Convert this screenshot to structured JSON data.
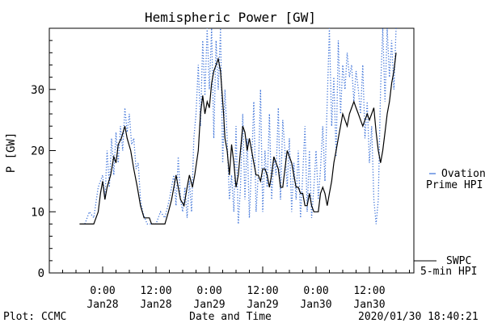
{
  "chart_data": {
    "type": "line",
    "title": "Hemispheric Power [GW]",
    "xlabel": "Date and Time",
    "ylabel": "P [GW]",
    "ylim": [
      0,
      40
    ],
    "xlim_hours": [
      -12,
      70
    ],
    "yticks": [
      0,
      10,
      20,
      30
    ],
    "xticks": [
      {
        "hour": 0,
        "time": "0:00",
        "date": "Jan28"
      },
      {
        "hour": 12,
        "time": "12:00",
        "date": "Jan28"
      },
      {
        "hour": 24,
        "time": "0:00",
        "date": "Jan29"
      },
      {
        "hour": 36,
        "time": "12:00",
        "date": "Jan29"
      },
      {
        "hour": 48,
        "time": "0:00",
        "date": "Jan30"
      },
      {
        "hour": 60,
        "time": "12:00",
        "date": "Jan30"
      }
    ],
    "grid": false,
    "legend_placement": "right",
    "series": [
      {
        "name": "SWPC 5-min HPI",
        "legend": [
          "SWPC",
          "5-min HPI"
        ],
        "color": "#000000",
        "style": "solid",
        "points": [
          [
            -5.2,
            8
          ],
          [
            -2.5,
            8
          ],
          [
            -2,
            8
          ],
          [
            -1,
            10
          ],
          [
            -0.5,
            13
          ],
          [
            0,
            15
          ],
          [
            0.5,
            12
          ],
          [
            1,
            14
          ],
          [
            1.8,
            16
          ],
          [
            2.5,
            19
          ],
          [
            3,
            18
          ],
          [
            3.5,
            21
          ],
          [
            4.2,
            22
          ],
          [
            5,
            24
          ],
          [
            5.5,
            22
          ],
          [
            6.3,
            20
          ],
          [
            7,
            17
          ],
          [
            7.8,
            14
          ],
          [
            8.5,
            11
          ],
          [
            9.3,
            9
          ],
          [
            10.5,
            9
          ],
          [
            11,
            8
          ],
          [
            14,
            8
          ],
          [
            14.8,
            10
          ],
          [
            15.5,
            12
          ],
          [
            16.5,
            16
          ],
          [
            17,
            14
          ],
          [
            17.5,
            12
          ],
          [
            18.3,
            11
          ],
          [
            19,
            14
          ],
          [
            19.5,
            16
          ],
          [
            20.2,
            14
          ],
          [
            20.7,
            16
          ],
          [
            21.5,
            20
          ],
          [
            22,
            26
          ],
          [
            22.5,
            29
          ],
          [
            23,
            26
          ],
          [
            23.5,
            28
          ],
          [
            24,
            27
          ],
          [
            24.5,
            31
          ],
          [
            25,
            33
          ],
          [
            25.5,
            34
          ],
          [
            26,
            35
          ],
          [
            26.5,
            33
          ],
          [
            27.2,
            26
          ],
          [
            27.5,
            22
          ],
          [
            28,
            20
          ],
          [
            28.5,
            16
          ],
          [
            29,
            21
          ],
          [
            29.5,
            18
          ],
          [
            30,
            14
          ],
          [
            30.5,
            16
          ],
          [
            31,
            20
          ],
          [
            31.5,
            24
          ],
          [
            32,
            23
          ],
          [
            32.5,
            20
          ],
          [
            33,
            22
          ],
          [
            33.5,
            20
          ],
          [
            34,
            18
          ],
          [
            34.5,
            16
          ],
          [
            35,
            16
          ],
          [
            35.5,
            15
          ],
          [
            36,
            17
          ],
          [
            36.5,
            17
          ],
          [
            37,
            16
          ],
          [
            37.5,
            14
          ],
          [
            38,
            16
          ],
          [
            38.5,
            19
          ],
          [
            39,
            18
          ],
          [
            39.5,
            17
          ],
          [
            40,
            14
          ],
          [
            40.5,
            14
          ],
          [
            41,
            17
          ],
          [
            41.5,
            20
          ],
          [
            42,
            19
          ],
          [
            42.5,
            18
          ],
          [
            43,
            16
          ],
          [
            43.5,
            14
          ],
          [
            44,
            14
          ],
          [
            44.5,
            13
          ],
          [
            45,
            13
          ],
          [
            45.5,
            11
          ],
          [
            46,
            11
          ],
          [
            46.5,
            13
          ],
          [
            47,
            11
          ],
          [
            47.5,
            10
          ],
          [
            48,
            10
          ],
          [
            48.5,
            10
          ],
          [
            49,
            13
          ],
          [
            49.5,
            14
          ],
          [
            50,
            13
          ],
          [
            50.5,
            11
          ],
          [
            51,
            13
          ],
          [
            51.5,
            15
          ],
          [
            52,
            18
          ],
          [
            52.5,
            20
          ],
          [
            53,
            22
          ],
          [
            53.5,
            24
          ],
          [
            54,
            26
          ],
          [
            54.5,
            25
          ],
          [
            55,
            24
          ],
          [
            55.5,
            26
          ],
          [
            56,
            27
          ],
          [
            56.5,
            28
          ],
          [
            57,
            27
          ],
          [
            57.5,
            26
          ],
          [
            58,
            25
          ],
          [
            58.5,
            24
          ],
          [
            59,
            25
          ],
          [
            59.5,
            26
          ],
          [
            60,
            25
          ],
          [
            60.5,
            26
          ],
          [
            61,
            27
          ],
          [
            61.5,
            23
          ],
          [
            62,
            20
          ],
          [
            62.5,
            18
          ],
          [
            63,
            20
          ],
          [
            63.5,
            23
          ],
          [
            64,
            26
          ],
          [
            64.5,
            28
          ],
          [
            65,
            31
          ],
          [
            65.5,
            33
          ],
          [
            66,
            36
          ]
        ]
      },
      {
        "name": "Ovation Prime HPI",
        "legend": [
          "Ovation",
          "Prime HPI"
        ],
        "color": "#3a70d8",
        "style": "dotted",
        "points": [
          [
            -4,
            8
          ],
          [
            -3,
            10
          ],
          [
            -2,
            9
          ],
          [
            -1,
            14
          ],
          [
            0,
            16
          ],
          [
            0.5,
            12
          ],
          [
            1,
            20
          ],
          [
            1.5,
            14
          ],
          [
            2,
            22
          ],
          [
            2.5,
            16
          ],
          [
            3,
            23
          ],
          [
            3.5,
            18
          ],
          [
            4,
            24
          ],
          [
            4.5,
            20
          ],
          [
            5,
            27
          ],
          [
            5.5,
            23
          ],
          [
            6,
            26
          ],
          [
            6.5,
            21
          ],
          [
            7,
            22
          ],
          [
            7.5,
            17
          ],
          [
            8,
            18
          ],
          [
            8.5,
            12
          ],
          [
            9,
            10
          ],
          [
            10,
            8
          ],
          [
            12,
            8
          ],
          [
            13,
            10
          ],
          [
            14,
            9
          ],
          [
            15,
            12
          ],
          [
            16,
            16
          ],
          [
            16.5,
            11
          ],
          [
            17,
            19
          ],
          [
            17.5,
            12
          ],
          [
            18,
            10
          ],
          [
            18.5,
            14
          ],
          [
            19,
            9
          ],
          [
            19.5,
            15
          ],
          [
            20,
            10
          ],
          [
            20.5,
            22
          ],
          [
            21,
            26
          ],
          [
            21.5,
            34
          ],
          [
            22,
            24
          ],
          [
            22.5,
            38
          ],
          [
            23,
            29
          ],
          [
            23.5,
            40
          ],
          [
            24,
            30
          ],
          [
            24.5,
            40
          ],
          [
            25,
            22
          ],
          [
            25.5,
            38
          ],
          [
            26,
            30
          ],
          [
            26.5,
            40
          ],
          [
            27,
            18
          ],
          [
            27.5,
            30
          ],
          [
            28,
            22
          ],
          [
            28.5,
            12
          ],
          [
            29,
            16
          ],
          [
            29.5,
            10
          ],
          [
            30,
            24
          ],
          [
            30.5,
            8
          ],
          [
            31,
            14
          ],
          [
            31.5,
            26
          ],
          [
            32,
            12
          ],
          [
            32.5,
            22
          ],
          [
            33,
            9
          ],
          [
            33.5,
            18
          ],
          [
            34,
            28
          ],
          [
            34.5,
            10
          ],
          [
            35,
            16
          ],
          [
            35.5,
            30
          ],
          [
            36,
            10
          ],
          [
            36.5,
            20
          ],
          [
            37,
            14
          ],
          [
            37.5,
            26
          ],
          [
            38,
            12
          ],
          [
            38.5,
            19
          ],
          [
            39,
            16
          ],
          [
            39.5,
            27
          ],
          [
            40,
            12
          ],
          [
            40.5,
            25
          ],
          [
            41,
            20
          ],
          [
            41.5,
            14
          ],
          [
            42,
            22
          ],
          [
            42.5,
            10
          ],
          [
            43,
            18
          ],
          [
            43.5,
            12
          ],
          [
            44,
            20
          ],
          [
            44.5,
            9
          ],
          [
            45,
            16
          ],
          [
            45.5,
            24
          ],
          [
            46,
            10
          ],
          [
            46.5,
            20
          ],
          [
            47,
            9
          ],
          [
            47.5,
            14
          ],
          [
            48,
            20
          ],
          [
            48.5,
            12
          ],
          [
            49,
            17
          ],
          [
            49.5,
            24
          ],
          [
            50,
            15
          ],
          [
            50.5,
            28
          ],
          [
            51,
            40
          ],
          [
            51.5,
            24
          ],
          [
            52,
            32
          ],
          [
            52.5,
            19
          ],
          [
            53,
            38
          ],
          [
            53.5,
            26
          ],
          [
            54,
            34
          ],
          [
            54.5,
            30
          ],
          [
            55,
            36
          ],
          [
            55.5,
            32
          ],
          [
            56,
            34
          ],
          [
            56.5,
            28
          ],
          [
            57,
            33
          ],
          [
            57.5,
            30
          ],
          [
            58,
            26
          ],
          [
            58.5,
            34
          ],
          [
            59,
            22
          ],
          [
            59.5,
            28
          ],
          [
            60,
            18
          ],
          [
            60.5,
            24
          ],
          [
            61,
            12
          ],
          [
            61.5,
            8
          ],
          [
            62,
            12
          ],
          [
            62.5,
            30
          ],
          [
            63,
            40
          ],
          [
            63.5,
            28
          ],
          [
            64,
            40
          ],
          [
            64.5,
            32
          ],
          [
            65,
            38
          ],
          [
            65.5,
            30
          ],
          [
            66,
            40
          ]
        ]
      }
    ]
  },
  "footer": {
    "left": "Plot: CCMC",
    "right": "2020/01/30 18:40:21"
  }
}
